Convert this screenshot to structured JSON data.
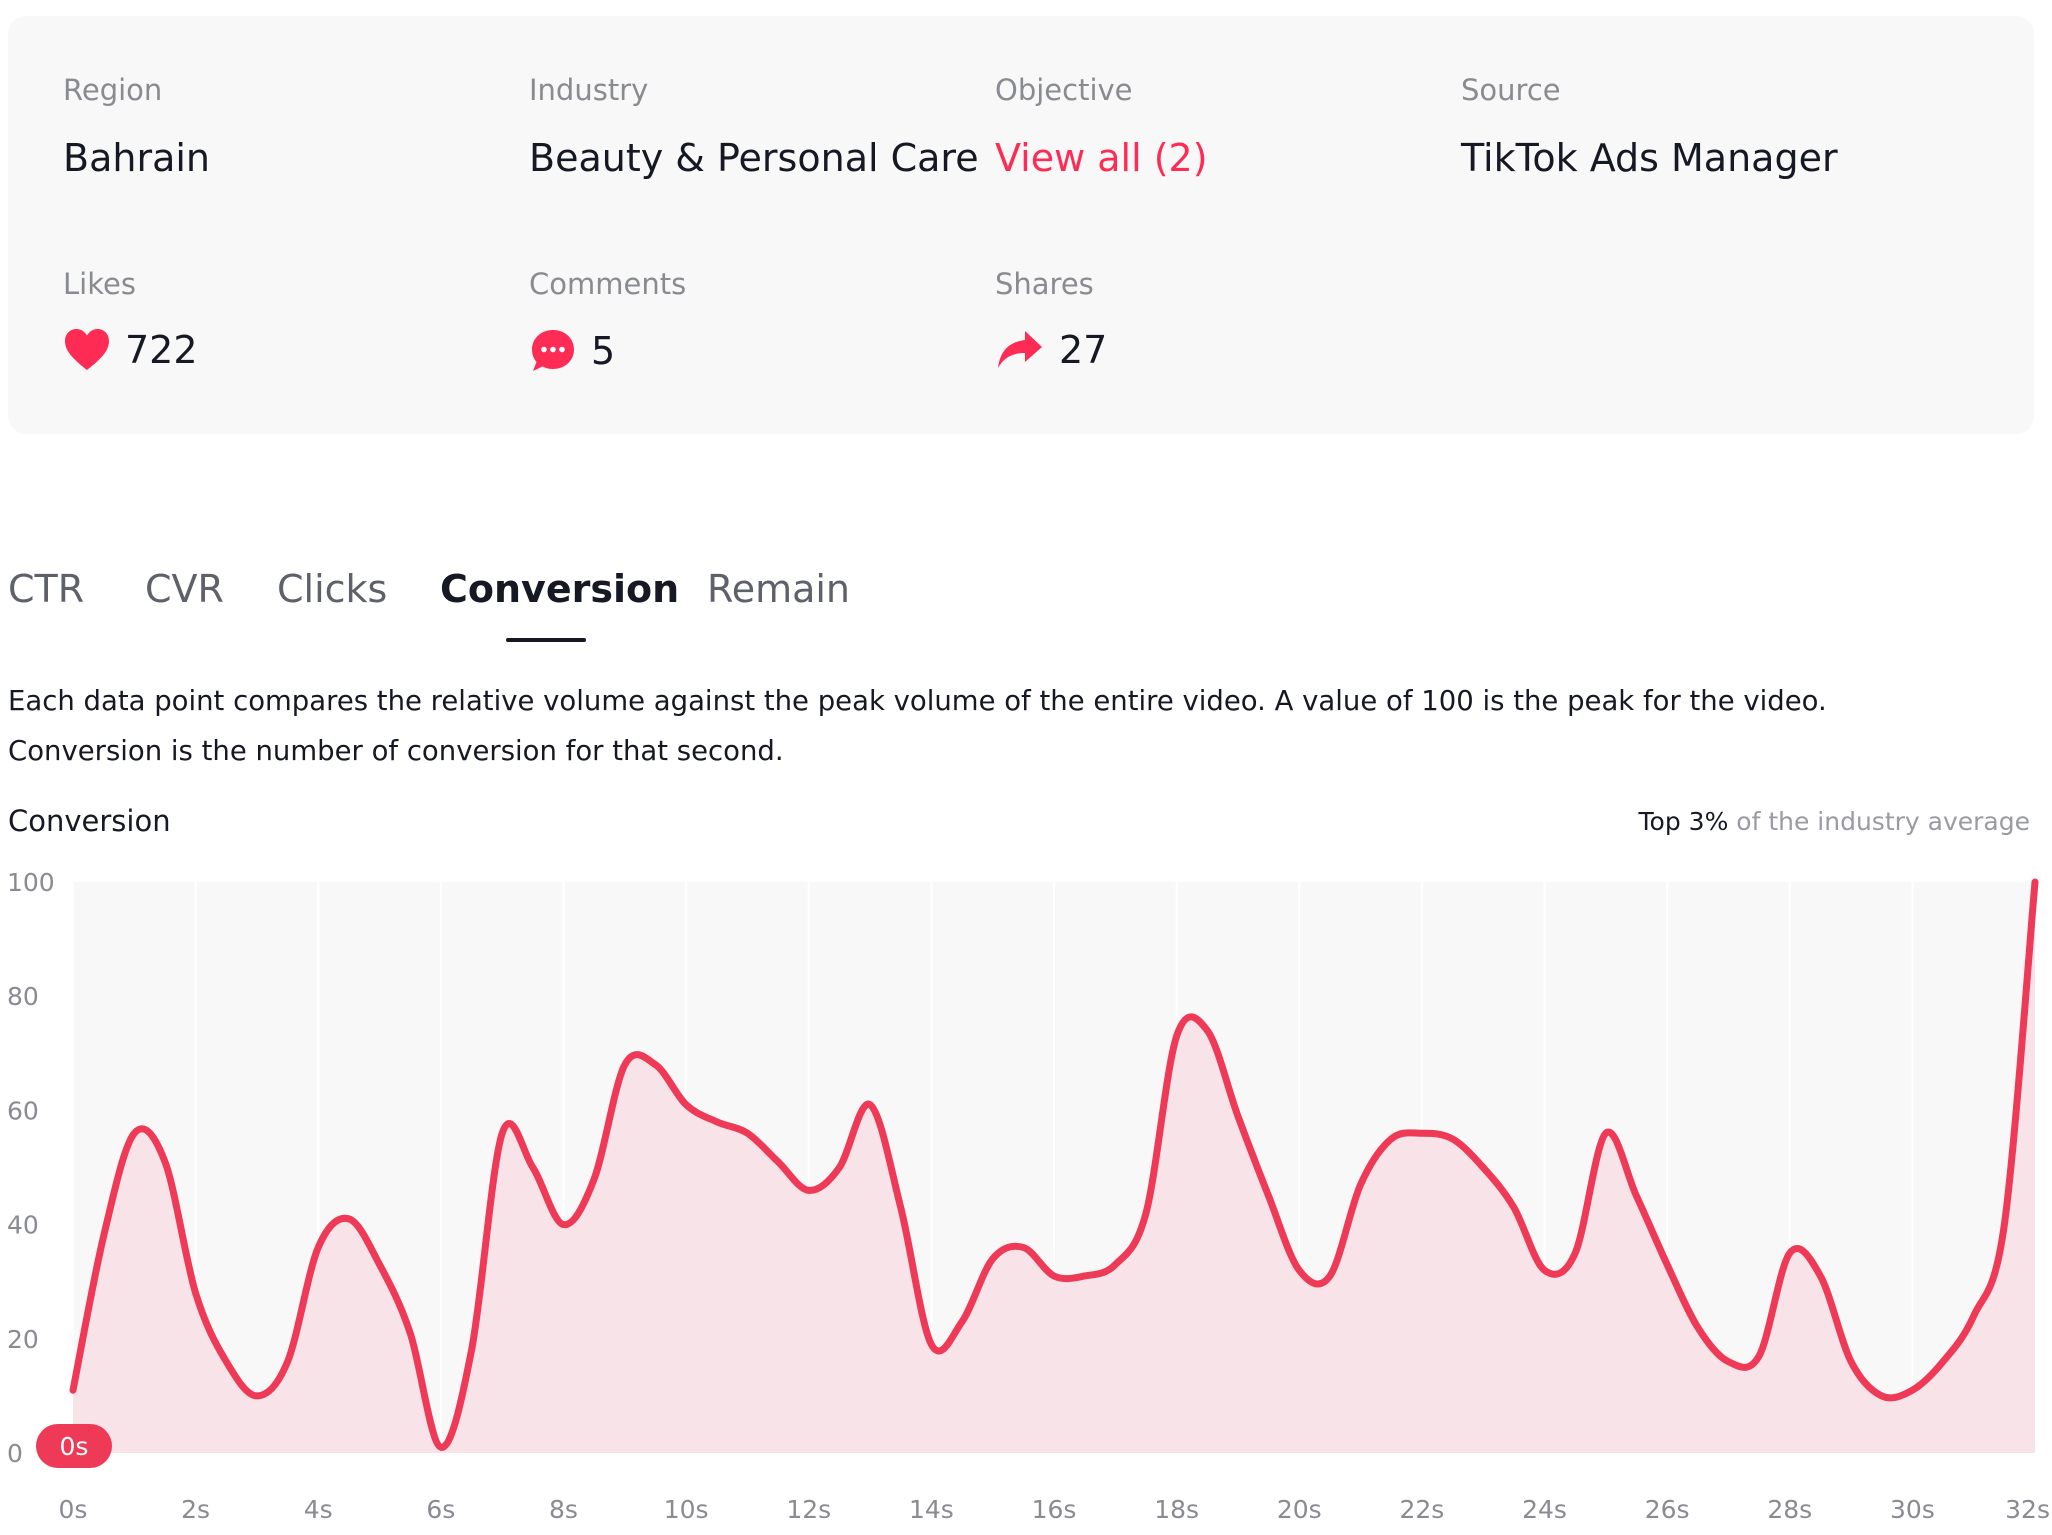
{
  "info": {
    "region": {
      "label": "Region",
      "value": "Bahrain"
    },
    "industry": {
      "label": "Industry",
      "value": "Beauty & Personal Care"
    },
    "objective": {
      "label": "Objective",
      "value": "View all (2)"
    },
    "source": {
      "label": "Source",
      "value": "TikTok Ads Manager"
    },
    "likes": {
      "label": "Likes",
      "value": "722",
      "icon": "heart-icon"
    },
    "comments": {
      "label": "Comments",
      "value": "5",
      "icon": "comment-bubble-icon"
    },
    "shares": {
      "label": "Shares",
      "value": "27",
      "icon": "share-arrow-icon"
    }
  },
  "tabs": [
    {
      "label": "CTR",
      "active": false
    },
    {
      "label": "CVR",
      "active": false
    },
    {
      "label": "Clicks",
      "active": false
    },
    {
      "label": "Conversion",
      "active": true
    },
    {
      "label": "Remain",
      "active": false
    }
  ],
  "description": {
    "line1": "Each data point compares the relative volume against the peak volume of the entire video. A value of 100 is the peak for the video.",
    "line2": "Conversion is the number of conversion for that second."
  },
  "chart_header": {
    "title": "Conversion",
    "note_strong": "Top 3%",
    "note_rest": " of the industry average"
  },
  "colors": {
    "accent": "#fe2c55",
    "line": "#ee3a57",
    "fill": "#f8e3e8",
    "plot_bg": "#f8f8f8"
  },
  "chart_data": {
    "type": "area",
    "x": [
      0,
      0.5,
      1,
      1.5,
      2,
      2.5,
      3,
      3.5,
      4,
      4.5,
      5,
      5.5,
      6,
      6.5,
      7,
      7.5,
      8,
      8.5,
      9,
      9.5,
      10,
      10.5,
      11,
      11.5,
      12,
      12.5,
      13,
      13.5,
      14,
      14.5,
      15,
      15.5,
      16,
      16.5,
      17,
      17.5,
      18,
      18.5,
      19,
      19.5,
      20,
      20.5,
      21,
      21.5,
      22,
      22.5,
      23,
      23.5,
      24,
      24.5,
      25,
      25.5,
      26,
      26.5,
      27,
      27.5,
      28,
      28.5,
      29,
      29.5,
      30,
      30.5,
      31,
      31.5,
      32
    ],
    "x_tick_labels": [
      "0s",
      "2s",
      "4s",
      "6s",
      "8s",
      "10s",
      "12s",
      "14s",
      "16s",
      "18s",
      "20s",
      "22s",
      "24s",
      "26s",
      "28s",
      "30s",
      "32s"
    ],
    "x_tick_values": [
      0,
      2,
      4,
      6,
      8,
      10,
      12,
      14,
      16,
      18,
      20,
      22,
      24,
      26,
      28,
      30,
      32
    ],
    "values": [
      11,
      38,
      56,
      51,
      28,
      16,
      10,
      16,
      36,
      41,
      33,
      21,
      1,
      18,
      56,
      50,
      40,
      48,
      68,
      68,
      61,
      58,
      56,
      51,
      46,
      50,
      61,
      43,
      19,
      23,
      34,
      36,
      31,
      31,
      33,
      42,
      73,
      74,
      59,
      45,
      32,
      31,
      47,
      55,
      56,
      55,
      50,
      43,
      32,
      35,
      56,
      45,
      33,
      22,
      16,
      17,
      35,
      31,
      16,
      10,
      11,
      16,
      24,
      40,
      100
    ],
    "xlim": [
      0,
      32
    ],
    "ylim": [
      0,
      100
    ],
    "y_ticks": [
      0,
      20,
      40,
      60,
      80,
      100
    ],
    "grid": true,
    "marker_label": "0s"
  }
}
